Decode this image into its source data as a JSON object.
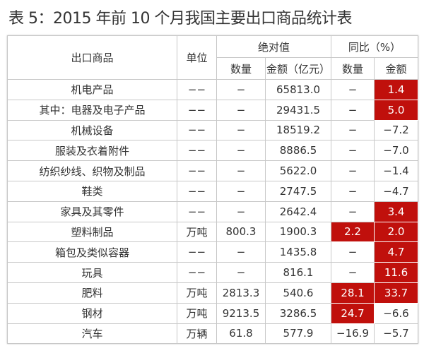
{
  "title": "表 5：2015 年前 10 个月我国主要出口商品统计表",
  "header": {
    "product": "出口商品",
    "unit": "单位",
    "absolute": "绝对值",
    "yoy": "同比（%）",
    "qty": "数量",
    "amount": "金额（亿元）",
    "yoy_qty": "数量",
    "yoy_amount": "金额"
  },
  "highlight_color": "#c0100c",
  "rows": [
    {
      "product": "机电产品",
      "unit": "−−",
      "qty": "−",
      "amount": "65813.0",
      "yoy_qty": "−",
      "yoy_amount": "1.4",
      "hq": false,
      "ha": true
    },
    {
      "product": "其中：电器及电子产品",
      "unit": "−−",
      "qty": "−",
      "amount": "29431.5",
      "yoy_qty": "−",
      "yoy_amount": "5.0",
      "hq": false,
      "ha": true
    },
    {
      "product": "机械设备",
      "unit": "−−",
      "qty": "−",
      "amount": "18519.2",
      "yoy_qty": "−",
      "yoy_amount": "−7.2",
      "hq": false,
      "ha": false
    },
    {
      "product": "服装及衣着附件",
      "unit": "−−",
      "qty": "−",
      "amount": "8886.5",
      "yoy_qty": "−",
      "yoy_amount": "−7.0",
      "hq": false,
      "ha": false
    },
    {
      "product": "纺织纱线、织物及制品",
      "unit": "−−",
      "qty": "−",
      "amount": "5622.0",
      "yoy_qty": "−",
      "yoy_amount": "−1.4",
      "hq": false,
      "ha": false
    },
    {
      "product": "鞋类",
      "unit": "−−",
      "qty": "−",
      "amount": "2747.5",
      "yoy_qty": "−",
      "yoy_amount": "−4.7",
      "hq": false,
      "ha": false
    },
    {
      "product": "家具及其零件",
      "unit": "−−",
      "qty": "−",
      "amount": "2642.4",
      "yoy_qty": "−",
      "yoy_amount": "3.4",
      "hq": false,
      "ha": true
    },
    {
      "product": "塑料制品",
      "unit": "万吨",
      "qty": "800.3",
      "amount": "1900.3",
      "yoy_qty": "2.2",
      "yoy_amount": "2.0",
      "hq": true,
      "ha": true
    },
    {
      "product": "箱包及类似容器",
      "unit": "−−",
      "qty": "−",
      "amount": "1435.8",
      "yoy_qty": "−",
      "yoy_amount": "4.7",
      "hq": false,
      "ha": true
    },
    {
      "product": "玩具",
      "unit": "−−",
      "qty": "−",
      "amount": "816.1",
      "yoy_qty": "−",
      "yoy_amount": "11.6",
      "hq": false,
      "ha": true
    },
    {
      "product": "肥料",
      "unit": "万吨",
      "qty": "2813.3",
      "amount": "540.6",
      "yoy_qty": "28.1",
      "yoy_amount": "33.7",
      "hq": true,
      "ha": true
    },
    {
      "product": "钢材",
      "unit": "万吨",
      "qty": "9213.5",
      "amount": "3286.5",
      "yoy_qty": "24.7",
      "yoy_amount": "−6.6",
      "hq": true,
      "ha": false
    },
    {
      "product": "汽车",
      "unit": "万辆",
      "qty": "61.8",
      "amount": "577.9",
      "yoy_qty": "−16.9",
      "yoy_amount": "−5.7",
      "hq": false,
      "ha": false
    }
  ]
}
